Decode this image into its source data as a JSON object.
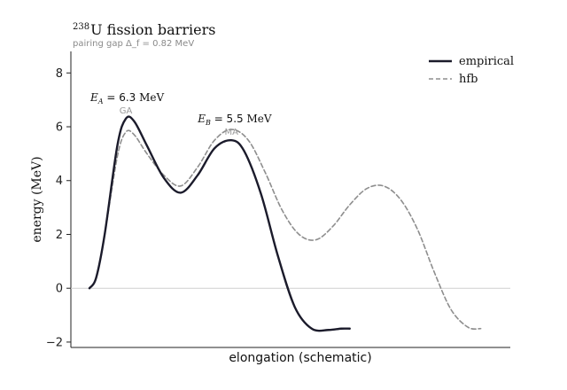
{
  "chart_data": {
    "type": "line",
    "title_super": "238",
    "title": "U fission barriers",
    "subtitle": "pairing gap Δ_f = 0.82 MeV",
    "xlabel": "elongation (schematic)",
    "ylabel": "energy (MeV)",
    "ylim": [
      -2.2,
      8.8
    ],
    "xlim": [
      -0.1,
      5.1
    ],
    "yticks": [
      -2,
      0,
      2,
      4,
      6,
      8
    ],
    "ytick_labels": [
      "−2",
      "0",
      "2",
      "4",
      "6",
      "8"
    ],
    "grid": false,
    "legend_position": "top-right",
    "reference_line_y": 0,
    "series": [
      {
        "name": "empirical",
        "color": "#1b1b2b",
        "style": "solid",
        "x": [
          0.12,
          0.2,
          0.3,
          0.45,
          0.55,
          0.65,
          0.8,
          1.0,
          1.2,
          1.4,
          1.6,
          1.8,
          1.95,
          2.15,
          2.35,
          2.55,
          2.75,
          2.95,
          3.1,
          3.2
        ],
        "y": [
          0,
          0.4,
          2.0,
          5.3,
          6.3,
          6.2,
          5.3,
          4.1,
          3.55,
          4.2,
          5.2,
          5.5,
          5.1,
          3.5,
          1.2,
          -0.7,
          -1.5,
          -1.55,
          -1.5,
          -1.5
        ]
      },
      {
        "name": "hfb",
        "color": "#8e8e8e",
        "style": "dashed",
        "x": [
          0.12,
          0.2,
          0.3,
          0.45,
          0.55,
          0.65,
          0.8,
          1.0,
          1.2,
          1.4,
          1.6,
          1.8,
          2.0,
          2.2,
          2.4,
          2.6,
          2.8,
          3.0,
          3.2,
          3.4,
          3.6,
          3.8,
          4.0,
          4.2,
          4.4,
          4.6,
          4.75
        ],
        "y": [
          0,
          0.4,
          2.0,
          4.9,
          5.8,
          5.7,
          5.0,
          4.2,
          3.8,
          4.5,
          5.5,
          5.9,
          5.5,
          4.3,
          2.9,
          2.0,
          1.8,
          2.3,
          3.1,
          3.7,
          3.8,
          3.3,
          2.2,
          0.6,
          -0.8,
          -1.45,
          -1.5
        ]
      }
    ],
    "annotations": [
      {
        "id": "A",
        "symbol": "E",
        "sub": "A",
        "value_text": " = 6.3 ",
        "unit": "MeV",
        "tag": "GA",
        "x": 0.55,
        "y": 6.3
      },
      {
        "id": "B",
        "symbol": "E",
        "sub": "B",
        "value_text": " = 5.5 ",
        "unit": "MeV",
        "tag": "MA",
        "x": 1.8,
        "y": 5.5
      }
    ]
  }
}
